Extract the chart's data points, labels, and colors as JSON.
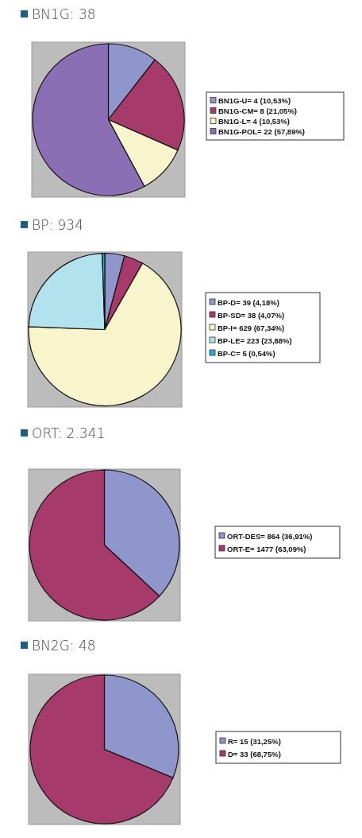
{
  "chart_data": [
    {
      "type": "pie",
      "title": "BN1G: 38",
      "categories": [
        "BN1G-U= 4 (10,53%)",
        "BN1G-CM= 8 (21,05%)",
        "BN1G-L= 4 (10,53%)",
        "BN1G-POL= 22 (57,89%)"
      ],
      "values": [
        4,
        8,
        4,
        22
      ],
      "colors": [
        "#8e96cc",
        "#a63a6a",
        "#f8f4cc",
        "#8b6fb5"
      ],
      "legend": "right"
    },
    {
      "type": "pie",
      "title": "BP: 934",
      "categories": [
        "BP-D= 39 (4,18%)",
        "BP-SD= 38 (4,07%)",
        "BP-I= 629 (67,34%)",
        "BP-LE= 223 (23,88%)",
        "BP-C= 5 (0,54%)"
      ],
      "values": [
        39,
        38,
        629,
        223,
        5
      ],
      "colors": [
        "#8e96cc",
        "#a63a6a",
        "#f8f4cc",
        "#b2e2ee",
        "#2aaccc"
      ],
      "legend": "right"
    },
    {
      "type": "pie",
      "title": "ORT: 2.341",
      "categories": [
        "ORT-DES= 864 (36,91%)",
        "ORT-E= 1477 (63,09%)"
      ],
      "values": [
        864,
        1477
      ],
      "colors": [
        "#8e96cc",
        "#a63a6a"
      ],
      "legend": "right"
    },
    {
      "type": "pie",
      "title": "BN2G: 48",
      "categories": [
        "R= 15 (31,25%)",
        "D= 33 (68,75%)"
      ],
      "values": [
        15,
        33
      ],
      "colors": [
        "#8e96cc",
        "#a63a6a"
      ],
      "legend": "right"
    }
  ]
}
